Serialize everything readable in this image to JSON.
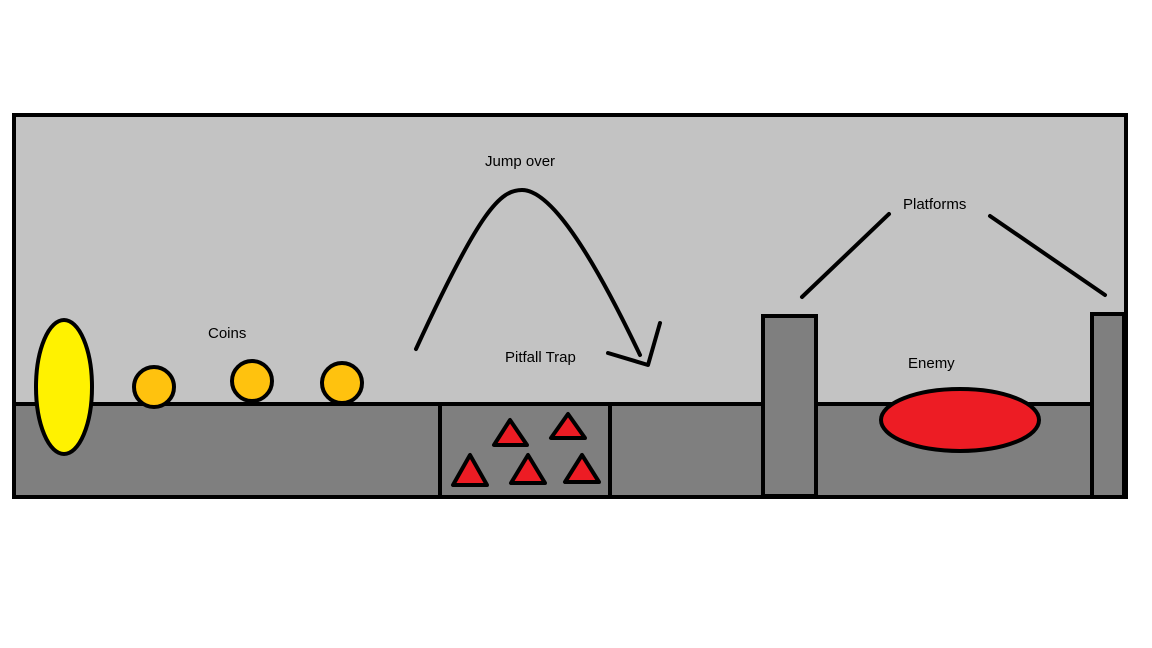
{
  "labels": {
    "coins": "Coins",
    "jump_over": "Jump over",
    "pitfall_trap": "Pitfall Trap",
    "platforms": "Platforms",
    "enemy": "Enemy"
  },
  "colors": {
    "sky": "#c3c3c3",
    "ground": "#7f7f7f",
    "outline": "#000000",
    "portal": "#fff200",
    "coin": "#ffc20e",
    "spike": "#ed1c24",
    "enemy": "#ed1c24",
    "platform": "#7f7f7f"
  },
  "entities": {
    "portal": "yellow-portal",
    "coins_count": 3,
    "spikes_count": 5,
    "platforms_count": 2,
    "enemy": "red-enemy"
  }
}
